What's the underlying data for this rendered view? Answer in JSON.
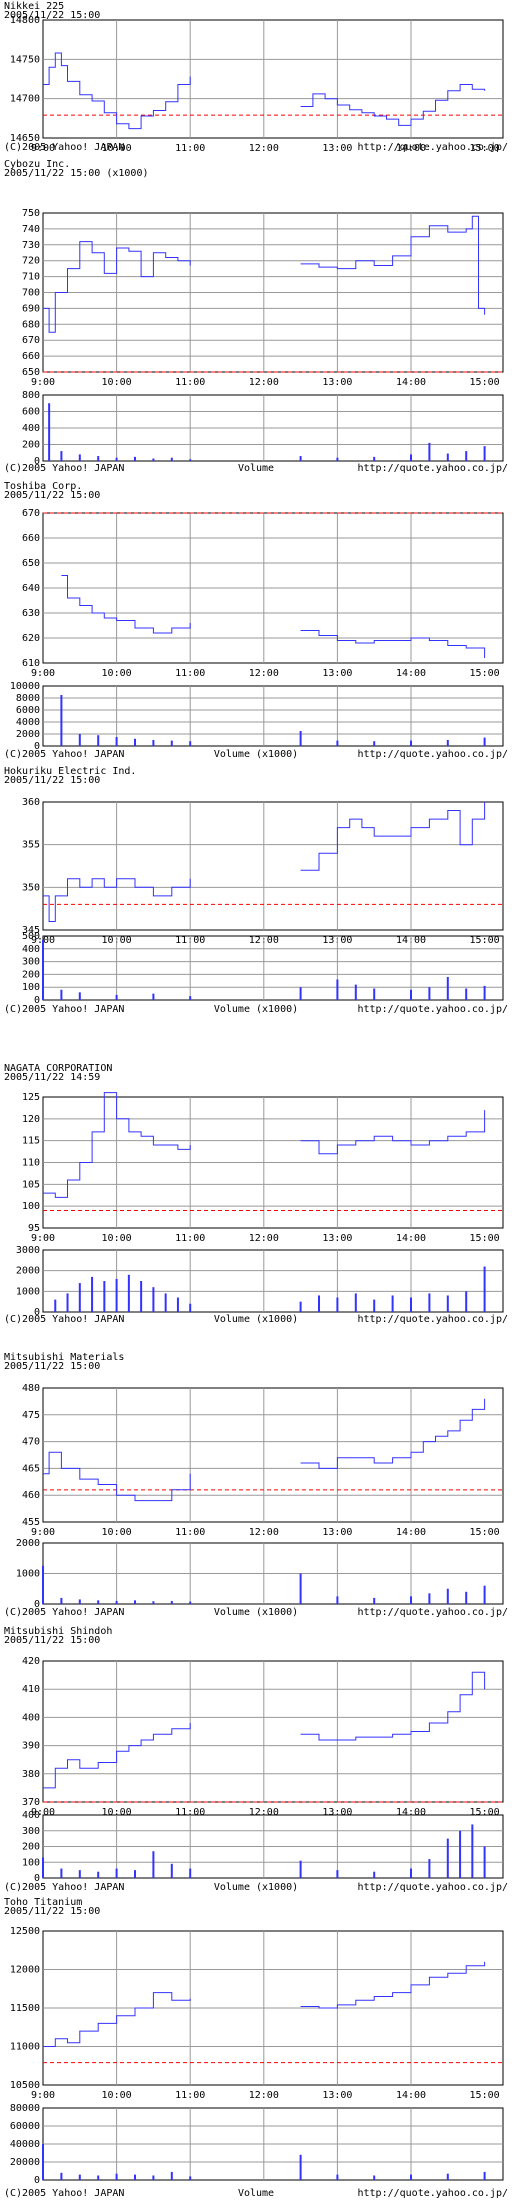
{
  "colors": {
    "line": "#3333ff",
    "prev_close": "#ff0000",
    "grid": "#999999",
    "frame": "#000000",
    "text": "#000000"
  },
  "chart_data": [
    {
      "type": "line",
      "name": "Nikkei 225",
      "datetime": "2005/11/22 15:00",
      "unit": "",
      "x_ticks": [
        "9:00",
        "10:00",
        "11:00",
        "12:00",
        "13:00",
        "14:00",
        "15:00"
      ],
      "y_ticks": [
        "14800",
        "14750",
        "14700",
        "14650"
      ],
      "ylim": [
        14650,
        14800
      ],
      "prev_close": 14679,
      "x": [
        "9:00",
        "9:05",
        "9:10",
        "9:15",
        "9:20",
        "9:30",
        "9:40",
        "9:50",
        "10:00",
        "10:10",
        "10:20",
        "10:30",
        "10:40",
        "10:50",
        "11:00",
        "12:30",
        "12:40",
        "12:50",
        "13:00",
        "13:10",
        "13:20",
        "13:30",
        "13:40",
        "13:50",
        "14:00",
        "14:10",
        "14:20",
        "14:30",
        "14:40",
        "14:50",
        "15:00"
      ],
      "values": [
        14718,
        14740,
        14758,
        14742,
        14722,
        14705,
        14697,
        14682,
        14668,
        14662,
        14678,
        14685,
        14696,
        14718,
        14728,
        14690,
        14706,
        14700,
        14692,
        14686,
        14682,
        14678,
        14674,
        14666,
        14674,
        14684,
        14698,
        14710,
        14718,
        14712,
        14710
      ],
      "footer": {
        "copyright": "(C)2005 Yahoo! JAPAN",
        "url": "http://quote.yahoo.co.jp/"
      }
    },
    {
      "type": "line",
      "name": "Cybozu Inc.",
      "datetime": "2005/11/22 15:00",
      "unit": "(x1000)",
      "x_ticks": [
        "9:00",
        "10:00",
        "11:00",
        "12:00",
        "13:00",
        "14:00",
        "15:00"
      ],
      "y_ticks": [
        "750",
        "740",
        "730",
        "720",
        "710",
        "700",
        "690",
        "680",
        "670",
        "660",
        "650"
      ],
      "ylim": [
        650,
        750
      ],
      "prev_close": 649,
      "x": [
        "9:00",
        "9:05",
        "9:10",
        "9:20",
        "9:30",
        "9:40",
        "9:50",
        "10:00",
        "10:10",
        "10:20",
        "10:30",
        "10:40",
        "10:50",
        "11:00",
        "12:30",
        "12:45",
        "13:00",
        "13:15",
        "13:30",
        "13:45",
        "14:00",
        "14:15",
        "14:30",
        "14:45",
        "14:50",
        "14:55",
        "15:00"
      ],
      "values": [
        690,
        675,
        700,
        715,
        732,
        725,
        712,
        728,
        726,
        710,
        725,
        722,
        720,
        717,
        718,
        716,
        715,
        720,
        717,
        723,
        735,
        742,
        738,
        740,
        748,
        690,
        686
      ],
      "volume": {
        "unit": "",
        "y_ticks": [
          "800",
          "600",
          "400",
          "200",
          "0"
        ],
        "ylim": [
          0,
          800
        ],
        "x": [
          "9:05",
          "9:15",
          "9:30",
          "9:45",
          "10:00",
          "10:15",
          "10:30",
          "10:45",
          "11:00",
          "12:30",
          "13:00",
          "13:30",
          "14:00",
          "14:15",
          "14:30",
          "14:45",
          "15:00"
        ],
        "values": [
          700,
          120,
          80,
          60,
          40,
          50,
          30,
          40,
          20,
          60,
          40,
          50,
          80,
          220,
          90,
          120,
          180
        ],
        "label": "Volume"
      },
      "footer": {
        "copyright": "(C)2005 Yahoo! JAPAN",
        "url": "http://quote.yahoo.co.jp/"
      }
    },
    {
      "type": "line",
      "name": "Toshiba Corp.",
      "datetime": "2005/11/22 15:00",
      "unit": "",
      "x_ticks": [
        "9:00",
        "10:00",
        "11:00",
        "12:00",
        "13:00",
        "14:00",
        "15:00"
      ],
      "y_ticks": [
        "670",
        "660",
        "650",
        "640",
        "630",
        "620",
        "610"
      ],
      "ylim": [
        610,
        670
      ],
      "prev_close": 671,
      "x": [
        "9:15",
        "9:20",
        "9:30",
        "9:40",
        "9:50",
        "10:00",
        "10:15",
        "10:30",
        "10:45",
        "11:00",
        "12:30",
        "12:45",
        "13:00",
        "13:15",
        "13:30",
        "13:45",
        "14:00",
        "14:15",
        "14:30",
        "14:45",
        "15:00"
      ],
      "values": [
        645,
        636,
        633,
        630,
        628,
        627,
        624,
        622,
        624,
        626,
        623,
        621,
        619,
        618,
        619,
        619,
        620,
        619,
        617,
        616,
        612
      ],
      "volume": {
        "unit": "(x1000)",
        "y_ticks": [
          "10000",
          "8000",
          "6000",
          "4000",
          "2000",
          "0"
        ],
        "ylim": [
          0,
          10000
        ],
        "x": [
          "9:15",
          "9:30",
          "9:45",
          "10:00",
          "10:15",
          "10:30",
          "10:45",
          "11:00",
          "12:30",
          "13:00",
          "13:30",
          "14:00",
          "14:30",
          "15:00"
        ],
        "values": [
          8500,
          2000,
          1800,
          1500,
          1200,
          1000,
          900,
          800,
          2500,
          900,
          800,
          900,
          1000,
          1400
        ],
        "label": "Volume (x1000)"
      },
      "footer": {
        "copyright": "(C)2005 Yahoo! JAPAN",
        "url": "http://quote.yahoo.co.jp/"
      }
    },
    {
      "type": "line",
      "name": "Hokuriku Electric Ind.",
      "datetime": "2005/11/22 15:00",
      "unit": "",
      "x_ticks": [
        "9:00",
        "10:00",
        "11:00",
        "12:00",
        "13:00",
        "14:00",
        "15:00"
      ],
      "y_ticks": [
        "360",
        "355",
        "350",
        "345"
      ],
      "ylim": [
        345,
        360
      ],
      "prev_close": 348,
      "x": [
        "9:00",
        "9:05",
        "9:10",
        "9:20",
        "9:30",
        "9:40",
        "9:50",
        "10:00",
        "10:15",
        "10:30",
        "10:45",
        "11:00",
        "12:30",
        "12:45",
        "13:00",
        "13:10",
        "13:20",
        "13:30",
        "13:45",
        "14:00",
        "14:15",
        "14:30",
        "14:40",
        "14:50",
        "15:00"
      ],
      "values": [
        349,
        346,
        349,
        351,
        350,
        351,
        350,
        351,
        350,
        349,
        350,
        351,
        352,
        354,
        357,
        358,
        357,
        356,
        356,
        357,
        358,
        359,
        355,
        358,
        360
      ],
      "volume": {
        "unit": "(x1000)",
        "y_ticks": [
          "500",
          "400",
          "300",
          "200",
          "100",
          "0"
        ],
        "ylim": [
          0,
          500
        ],
        "x": [
          "9:00",
          "9:15",
          "9:30",
          "10:00",
          "10:30",
          "11:00",
          "12:30",
          "13:00",
          "13:15",
          "13:30",
          "14:00",
          "14:15",
          "14:30",
          "14:45",
          "15:00"
        ],
        "values": [
          470,
          80,
          60,
          40,
          50,
          30,
          100,
          160,
          120,
          90,
          80,
          100,
          180,
          90,
          110
        ],
        "label": "Volume (x1000)"
      },
      "footer": {
        "copyright": "(C)2005 Yahoo! JAPAN",
        "url": "http://quote.yahoo.co.jp/"
      }
    },
    {
      "type": "line",
      "name": "NAGATA CORPORATION",
      "datetime": "2005/11/22 14:59",
      "unit": "",
      "x_ticks": [
        "9:00",
        "10:00",
        "11:00",
        "12:00",
        "13:00",
        "14:00",
        "15:00"
      ],
      "y_ticks": [
        "125",
        "120",
        "115",
        "110",
        "105",
        "100",
        "95"
      ],
      "ylim": [
        95,
        125
      ],
      "prev_close": 99,
      "x": [
        "9:00",
        "9:10",
        "9:20",
        "9:30",
        "9:40",
        "9:50",
        "10:00",
        "10:10",
        "10:20",
        "10:30",
        "10:40",
        "10:50",
        "11:00",
        "12:30",
        "12:45",
        "13:00",
        "13:15",
        "13:30",
        "13:45",
        "14:00",
        "14:15",
        "14:30",
        "14:45",
        "15:00"
      ],
      "values": [
        103,
        102,
        106,
        110,
        117,
        126,
        120,
        117,
        116,
        114,
        114,
        113,
        114,
        115,
        112,
        114,
        115,
        116,
        115,
        114,
        115,
        116,
        117,
        122
      ],
      "volume": {
        "unit": "(x1000)",
        "y_ticks": [
          "3000",
          "2000",
          "1000",
          "0"
        ],
        "ylim": [
          0,
          3000
        ],
        "x": [
          "9:10",
          "9:20",
          "9:30",
          "9:40",
          "9:50",
          "10:00",
          "10:10",
          "10:20",
          "10:30",
          "10:40",
          "10:50",
          "11:00",
          "12:30",
          "12:45",
          "13:00",
          "13:15",
          "13:30",
          "13:45",
          "14:00",
          "14:15",
          "14:30",
          "14:45",
          "15:00"
        ],
        "values": [
          600,
          900,
          1400,
          1700,
          1500,
          1600,
          1800,
          1500,
          1200,
          900,
          700,
          400,
          500,
          800,
          700,
          900,
          600,
          800,
          700,
          900,
          800,
          1000,
          2200
        ],
        "label": "Volume (x1000)"
      },
      "footer": {
        "copyright": "(C)2005 Yahoo! JAPAN",
        "url": "http://quote.yahoo.co.jp/"
      }
    },
    {
      "type": "line",
      "name": "Mitsubishi Materials",
      "datetime": "2005/11/22 15:00",
      "unit": "",
      "x_ticks": [
        "9:00",
        "10:00",
        "11:00",
        "12:00",
        "13:00",
        "14:00",
        "15:00"
      ],
      "y_ticks": [
        "480",
        "475",
        "470",
        "465",
        "460",
        "455"
      ],
      "ylim": [
        455,
        480
      ],
      "prev_close": 461,
      "x": [
        "9:00",
        "9:05",
        "9:15",
        "9:30",
        "9:45",
        "10:00",
        "10:15",
        "10:30",
        "10:45",
        "11:00",
        "12:30",
        "12:45",
        "13:00",
        "13:15",
        "13:30",
        "13:45",
        "14:00",
        "14:10",
        "14:20",
        "14:30",
        "14:40",
        "14:50",
        "15:00"
      ],
      "values": [
        464,
        468,
        465,
        463,
        462,
        460,
        459,
        459,
        461,
        464,
        466,
        465,
        467,
        467,
        466,
        467,
        468,
        470,
        471,
        472,
        474,
        476,
        478
      ],
      "volume": {
        "unit": "(x1000)",
        "y_ticks": [
          "2000",
          "1000",
          "0"
        ],
        "ylim": [
          0,
          2000
        ],
        "x": [
          "9:00",
          "9:15",
          "9:30",
          "9:45",
          "10:00",
          "10:15",
          "10:30",
          "10:45",
          "11:00",
          "12:30",
          "13:00",
          "13:30",
          "14:00",
          "14:15",
          "14:30",
          "14:45",
          "15:00"
        ],
        "values": [
          1250,
          200,
          150,
          120,
          100,
          120,
          90,
          100,
          80,
          1000,
          250,
          200,
          250,
          350,
          500,
          400,
          600
        ],
        "label": "Volume (x1000)"
      },
      "footer": {
        "copyright": "(C)2005 Yahoo! JAPAN",
        "url": "http://quote.yahoo.co.jp/"
      }
    },
    {
      "type": "line",
      "name": "Mitsubishi Shindoh",
      "datetime": "2005/11/22 15:00",
      "unit": "",
      "x_ticks": [
        "9:00",
        "10:00",
        "11:00",
        "12:00",
        "13:00",
        "14:00",
        "15:00"
      ],
      "y_ticks": [
        "420",
        "410",
        "400",
        "390",
        "380",
        "370"
      ],
      "ylim": [
        370,
        420
      ],
      "prev_close": 370,
      "x": [
        "9:00",
        "9:10",
        "9:20",
        "9:30",
        "9:45",
        "10:00",
        "10:10",
        "10:20",
        "10:30",
        "10:45",
        "11:00",
        "12:30",
        "12:45",
        "13:00",
        "13:15",
        "13:30",
        "13:45",
        "14:00",
        "14:15",
        "14:30",
        "14:40",
        "14:50",
        "15:00"
      ],
      "values": [
        375,
        382,
        385,
        382,
        384,
        388,
        390,
        392,
        394,
        396,
        398,
        394,
        392,
        392,
        393,
        393,
        394,
        395,
        398,
        402,
        408,
        416,
        410
      ],
      "volume": {
        "unit": "(x1000)",
        "y_ticks": [
          "400",
          "300",
          "200",
          "100",
          "0"
        ],
        "ylim": [
          0,
          400
        ],
        "x": [
          "9:00",
          "9:15",
          "9:30",
          "9:45",
          "10:00",
          "10:15",
          "10:30",
          "10:45",
          "11:00",
          "12:30",
          "13:00",
          "13:30",
          "14:00",
          "14:15",
          "14:30",
          "14:40",
          "14:50",
          "15:00"
        ],
        "values": [
          130,
          60,
          50,
          40,
          60,
          50,
          170,
          90,
          60,
          110,
          50,
          40,
          60,
          120,
          250,
          300,
          340,
          200
        ],
        "label": "Volume (x1000)"
      },
      "footer": {
        "copyright": "(C)2005 Yahoo! JAPAN",
        "url": "http://quote.yahoo.co.jp/"
      }
    },
    {
      "type": "line",
      "name": "Toho Titanium",
      "datetime": "2005/11/22 15:00",
      "unit": "",
      "x_ticks": [
        "9:00",
        "10:00",
        "11:00",
        "12:00",
        "13:00",
        "14:00",
        "15:00"
      ],
      "y_ticks": [
        "12500",
        "12000",
        "11500",
        "11000",
        "10500"
      ],
      "ylim": [
        10500,
        12500
      ],
      "prev_close": 10790,
      "x": [
        "9:00",
        "9:10",
        "9:20",
        "9:30",
        "9:45",
        "10:00",
        "10:15",
        "10:30",
        "10:45",
        "11:00",
        "12:30",
        "12:45",
        "13:00",
        "13:15",
        "13:30",
        "13:45",
        "14:00",
        "14:15",
        "14:30",
        "14:45",
        "15:00"
      ],
      "values": [
        11000,
        11100,
        11050,
        11200,
        11300,
        11400,
        11500,
        11700,
        11600,
        11620,
        11520,
        11500,
        11540,
        11600,
        11650,
        11700,
        11800,
        11900,
        11950,
        12050,
        12100
      ],
      "volume": {
        "unit": "",
        "y_ticks": [
          "80000",
          "60000",
          "40000",
          "20000",
          "0"
        ],
        "ylim": [
          0,
          80000
        ],
        "x": [
          "9:00",
          "9:15",
          "9:30",
          "9:45",
          "10:00",
          "10:15",
          "10:30",
          "10:45",
          "11:00",
          "12:30",
          "13:00",
          "13:30",
          "14:00",
          "14:30",
          "15:00"
        ],
        "values": [
          40000,
          8000,
          6000,
          5000,
          7000,
          6000,
          5000,
          9000,
          4000,
          28000,
          6000,
          5000,
          6000,
          7000,
          9000
        ],
        "label": "Volume"
      },
      "footer": {
        "copyright": "(C)2005 Yahoo! JAPAN",
        "url": "http://quote.yahoo.co.jp/"
      }
    }
  ]
}
